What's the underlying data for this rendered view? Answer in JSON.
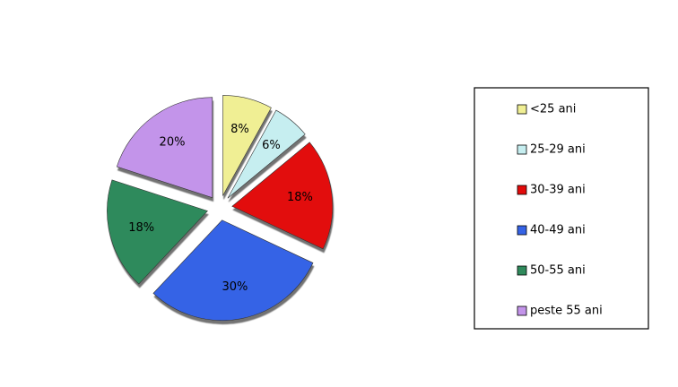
{
  "chart_data": {
    "type": "pie",
    "categories": [
      "<25 ani",
      "25-29 ani",
      "30-39 ani",
      "40-49 ani",
      "50-55 ani",
      "peste 55 ani"
    ],
    "values": [
      8,
      6,
      18,
      30,
      18,
      20
    ],
    "value_labels": [
      "8%",
      "6%",
      "18%",
      "30%",
      "18%",
      "20%"
    ],
    "colors": [
      "#f0ef94",
      "#c6eef0",
      "#e20a0a",
      "#3563e6",
      "#2f8a5c",
      "#c394ea"
    ],
    "legend": "right"
  }
}
